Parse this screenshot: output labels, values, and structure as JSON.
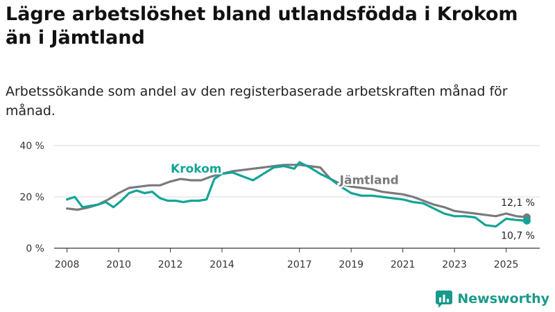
{
  "header": {
    "title": "Lägre arbetslöshet bland utlandsfödda i Krokom än i Jämtland",
    "subtitle": "Arbetssökande som andel av den registerbaserade arbetskraften månad för månad."
  },
  "brand": {
    "name": "Newsworthy",
    "icon": "newsworthy-logo-icon"
  },
  "colors": {
    "krokom": "#12a496",
    "jamtland": "#7a7a7e",
    "grid": "#d9d9d9",
    "axis": "#333333"
  },
  "chart_data": {
    "type": "line",
    "title": "Lägre arbetslöshet bland utlandsfödda i Krokom än i Jämtland",
    "xlabel": "",
    "ylabel": "",
    "xlim": [
      2007.5,
      2026.3
    ],
    "ylim": [
      0,
      40
    ],
    "x_ticks": [
      {
        "value": 2008,
        "label": "2008"
      },
      {
        "value": 2010,
        "label": "2010"
      },
      {
        "value": 2012,
        "label": "2012"
      },
      {
        "value": 2014,
        "label": "2014"
      },
      {
        "value": 2017,
        "label": "2017"
      },
      {
        "value": 2019,
        "label": "2019"
      },
      {
        "value": 2021,
        "label": "2021"
      },
      {
        "value": 2023,
        "label": "2023"
      },
      {
        "value": 2025,
        "label": "2025"
      }
    ],
    "y_ticks": [
      {
        "value": 0,
        "label": "0 %"
      },
      {
        "value": 20,
        "label": "20 %"
      },
      {
        "value": 40,
        "label": "40 %"
      }
    ],
    "grid": true,
    "series": [
      {
        "name": "Jämtland",
        "label": "Jämtland",
        "end_label": "12,1 %",
        "x": [
          2008.0,
          2008.4,
          2008.8,
          2009.2,
          2009.6,
          2010.0,
          2010.4,
          2010.8,
          2011.2,
          2011.6,
          2012.0,
          2012.4,
          2012.8,
          2013.2,
          2013.6,
          2014.0,
          2014.4,
          2014.8,
          2015.2,
          2015.6,
          2016.0,
          2016.4,
          2016.8,
          2017.0,
          2017.4,
          2017.8,
          2018.2,
          2018.6,
          2019.0,
          2019.4,
          2019.8,
          2020.2,
          2020.6,
          2021.0,
          2021.4,
          2021.8,
          2022.2,
          2022.6,
          2023.0,
          2023.4,
          2023.8,
          2024.2,
          2024.6,
          2025.0,
          2025.4,
          2025.8
        ],
        "values": [
          15.5,
          15.0,
          15.8,
          17.0,
          19.0,
          21.5,
          23.5,
          24.0,
          24.5,
          24.5,
          26.0,
          27.0,
          26.5,
          26.5,
          28.0,
          29.0,
          30.0,
          30.5,
          31.0,
          31.5,
          32.0,
          32.5,
          32.5,
          32.5,
          32.0,
          31.5,
          27.0,
          25.0,
          24.0,
          23.5,
          23.0,
          22.0,
          21.5,
          21.0,
          20.0,
          18.5,
          17.0,
          16.0,
          14.5,
          14.0,
          13.5,
          13.0,
          12.5,
          13.5,
          12.5,
          12.1
        ]
      },
      {
        "name": "Krokom",
        "label": "Krokom",
        "end_label": "10,7 %",
        "x": [
          2008.0,
          2008.3,
          2008.6,
          2008.9,
          2009.2,
          2009.5,
          2009.8,
          2010.1,
          2010.4,
          2010.7,
          2011.0,
          2011.3,
          2011.6,
          2011.9,
          2012.2,
          2012.5,
          2012.8,
          2013.1,
          2013.4,
          2013.7,
          2014.0,
          2014.4,
          2014.8,
          2015.2,
          2015.6,
          2016.0,
          2016.4,
          2016.8,
          2017.0,
          2017.4,
          2017.8,
          2018.2,
          2018.6,
          2019.0,
          2019.4,
          2019.8,
          2020.2,
          2020.6,
          2021.0,
          2021.4,
          2021.8,
          2022.2,
          2022.6,
          2023.0,
          2023.4,
          2023.8,
          2024.2,
          2024.6,
          2025.0,
          2025.4,
          2025.8
        ],
        "values": [
          19.0,
          20.0,
          16.0,
          16.5,
          17.0,
          18.0,
          16.0,
          18.5,
          21.5,
          22.5,
          21.5,
          22.0,
          19.5,
          18.5,
          18.5,
          18.0,
          18.5,
          18.5,
          19.0,
          27.0,
          29.0,
          29.5,
          28.0,
          26.5,
          29.0,
          31.5,
          32.0,
          31.0,
          33.5,
          31.5,
          29.0,
          27.0,
          24.0,
          21.5,
          20.5,
          20.5,
          20.0,
          19.5,
          19.0,
          18.0,
          17.5,
          15.5,
          13.5,
          12.5,
          12.5,
          12.0,
          9.0,
          8.5,
          11.5,
          11.0,
          10.7
        ]
      }
    ]
  }
}
